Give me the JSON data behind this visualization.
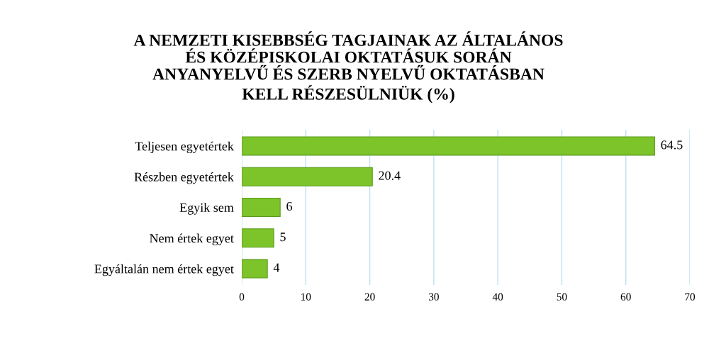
{
  "chart_data": {
    "type": "bar",
    "orientation": "horizontal",
    "title": "A NEMZETI KISEBBSÉG TAGJAINAK AZ ÁLTALÁNOS\nÉS KÖZÉPISKOLAI OKTATÁSUK SORÁN\nANYANYELVŰ ÉS SZERB NYELVŰ OKTATÁSBAN\nKELL RÉSZESÜLNIÜK (%)",
    "categories": [
      "Teljesen egyetértek",
      "Részben egyetértek",
      "Egyik sem",
      "Nem értek egyet",
      "Egyáltalán nem értek egyet"
    ],
    "values": [
      64.5,
      20.4,
      6,
      5,
      4
    ],
    "color": "#7cc42a",
    "xlim": [
      0,
      70
    ],
    "xticks": [
      0,
      10,
      20,
      30,
      40,
      50,
      60,
      70
    ],
    "grid": "x",
    "data_labels": true
  }
}
